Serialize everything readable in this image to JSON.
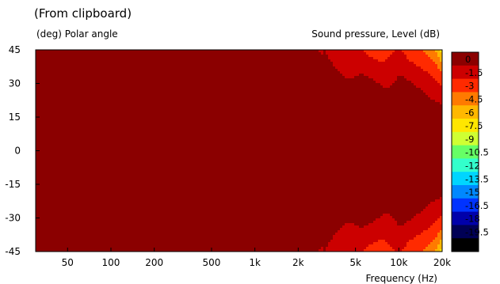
{
  "chart_data": {
    "type": "heatmap",
    "title": "(From clipboard)",
    "ylabel": "(deg)  Polar angle",
    "colorbar_label": "Sound pressure, Level  (dB)",
    "xlabel": "Frequency  (Hz)",
    "x_scale": "log",
    "xlim": [
      30,
      20000
    ],
    "ylim": [
      -45,
      45
    ],
    "x_ticks": [
      {
        "value": 50,
        "label": "50"
      },
      {
        "value": 100,
        "label": "100"
      },
      {
        "value": 200,
        "label": "200"
      },
      {
        "value": 500,
        "label": "500"
      },
      {
        "value": 1000,
        "label": "1k"
      },
      {
        "value": 2000,
        "label": "2k"
      },
      {
        "value": 5000,
        "label": "5k"
      },
      {
        "value": 10000,
        "label": "10k"
      },
      {
        "value": 20000,
        "label": "20k"
      }
    ],
    "y_ticks": [
      {
        "value": 45,
        "label": "45"
      },
      {
        "value": 30,
        "label": "30"
      },
      {
        "value": 15,
        "label": "15"
      },
      {
        "value": 0,
        "label": "0"
      },
      {
        "value": -15,
        "label": "-15"
      },
      {
        "value": -30,
        "label": "-30"
      },
      {
        "value": -45,
        "label": "-45"
      }
    ],
    "color_scale": [
      {
        "level": "0",
        "color": "#8b0000"
      },
      {
        "level": "-1.5",
        "color": "#cc0000"
      },
      {
        "level": "-3",
        "color": "#ff2a00"
      },
      {
        "level": "-4.5",
        "color": "#ff7a00"
      },
      {
        "level": "-6",
        "color": "#ffb800"
      },
      {
        "level": "-7.5",
        "color": "#ffe600"
      },
      {
        "level": "-9",
        "color": "#cfff33"
      },
      {
        "level": "-10.5",
        "color": "#66ff66"
      },
      {
        "level": "-12",
        "color": "#33ffcc"
      },
      {
        "level": "-13.5",
        "color": "#00d5ff"
      },
      {
        "level": "-15",
        "color": "#0088ff"
      },
      {
        "level": "-16.5",
        "color": "#0033ff"
      },
      {
        "level": "-18",
        "color": "#0000aa"
      },
      {
        "level": "-19.5",
        "color": "#000055"
      },
      {
        "level": "",
        "color": "#000000"
      }
    ],
    "response_profile": {
      "note_free": true,
      "frequencies": [
        30,
        500,
        2000,
        4000,
        6000,
        8000,
        10000,
        12000,
        14000,
        16000,
        18000,
        20000
      ],
      "edge_level_db": [
        0,
        -0.2,
        -0.8,
        -2.4,
        -3.4,
        -3.6,
        -3.2,
        -3.9,
        -4.1,
        -5.0,
        -6.5,
        -8.5
      ]
    }
  }
}
